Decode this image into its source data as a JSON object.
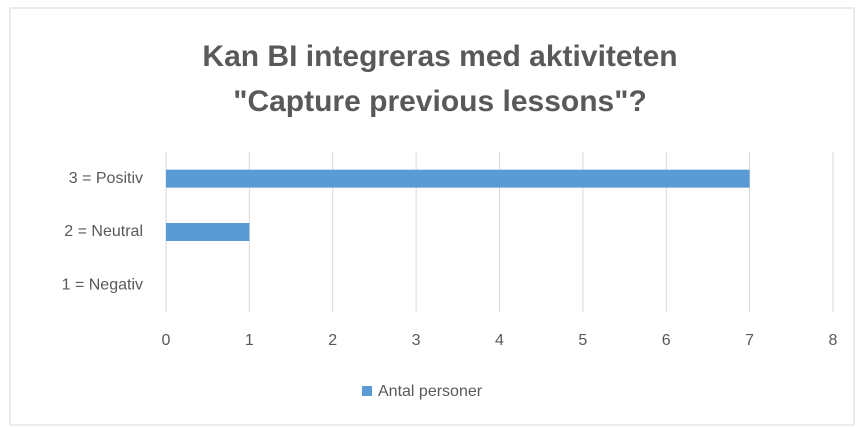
{
  "chart_data": {
    "type": "hbar",
    "title": [
      "Kan BI integreras med aktiviteten",
      "\"Capture previous lessons\"?"
    ],
    "categories": [
      "3 = Positiv",
      "2 = Neutral",
      "1 = Negativ"
    ],
    "series": [
      {
        "name": "Antal personer",
        "color": "#5b9bd5",
        "values": [
          7,
          1,
          0
        ]
      }
    ],
    "xlim": [
      0,
      8
    ],
    "xticks": [
      0,
      1,
      2,
      3,
      4,
      5,
      6,
      7,
      8
    ],
    "grid": true,
    "legend": "bottom"
  }
}
